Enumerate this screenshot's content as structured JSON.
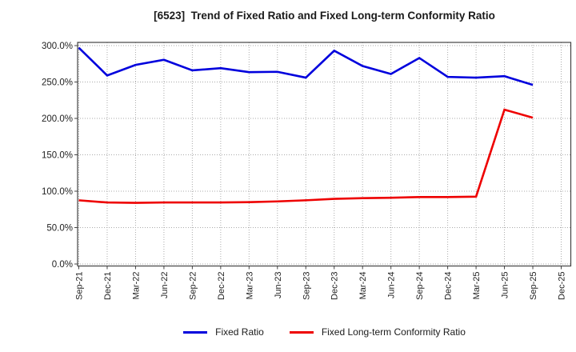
{
  "title": "[6523]  Trend of Fixed Ratio and Fixed Long-term Conformity Ratio",
  "legend": [
    {
      "label": "Fixed Ratio",
      "color": "#0000dd"
    },
    {
      "label": "Fixed Long-term Conformity Ratio",
      "color": "#ee0000"
    }
  ],
  "colors": {
    "grid": "#aaaaaa",
    "frame": "#444444",
    "tick_text": "#222222",
    "background": "#ffffff"
  },
  "chart_data": {
    "type": "line",
    "title": "[6523]  Trend of Fixed Ratio and Fixed Long-term Conformity Ratio",
    "categories": [
      "Sep-21",
      "Dec-21",
      "Mar-22",
      "Jun-22",
      "Sep-22",
      "Dec-22",
      "Mar-23",
      "Jun-23",
      "Sep-23",
      "Dec-23",
      "Mar-24",
      "Jun-24",
      "Sep-24",
      "Dec-24",
      "Mar-25",
      "Jun-25",
      "Sep-25",
      "Dec-25"
    ],
    "series": [
      {
        "name": "Fixed Ratio",
        "color": "#0000dd",
        "values": [
          297.0,
          259.0,
          273.5,
          280.5,
          266.0,
          269.0,
          263.5,
          264.0,
          256.0,
          293.0,
          272.0,
          261.0,
          283.0,
          257.0,
          256.0,
          258.0,
          246.0,
          null
        ]
      },
      {
        "name": "Fixed Long-term Conformity Ratio",
        "color": "#ee0000",
        "values": [
          87.5,
          84.5,
          84.0,
          84.5,
          84.5,
          84.5,
          85.0,
          86.0,
          87.5,
          89.5,
          90.5,
          91.0,
          92.0,
          92.0,
          92.5,
          212.0,
          201.0,
          null
        ]
      }
    ],
    "xlabel": "",
    "ylabel": "",
    "ylim": [
      0,
      300
    ],
    "ytick_values": [
      0,
      50,
      100,
      150,
      200,
      250,
      300
    ],
    "ytick_labels": [
      "0.0%",
      "50.0%",
      "100.0%",
      "150.0%",
      "200.0%",
      "250.0%",
      "300.0%"
    ],
    "x_tick_rotation": 90,
    "grid": true,
    "legend_position": "bottom"
  }
}
